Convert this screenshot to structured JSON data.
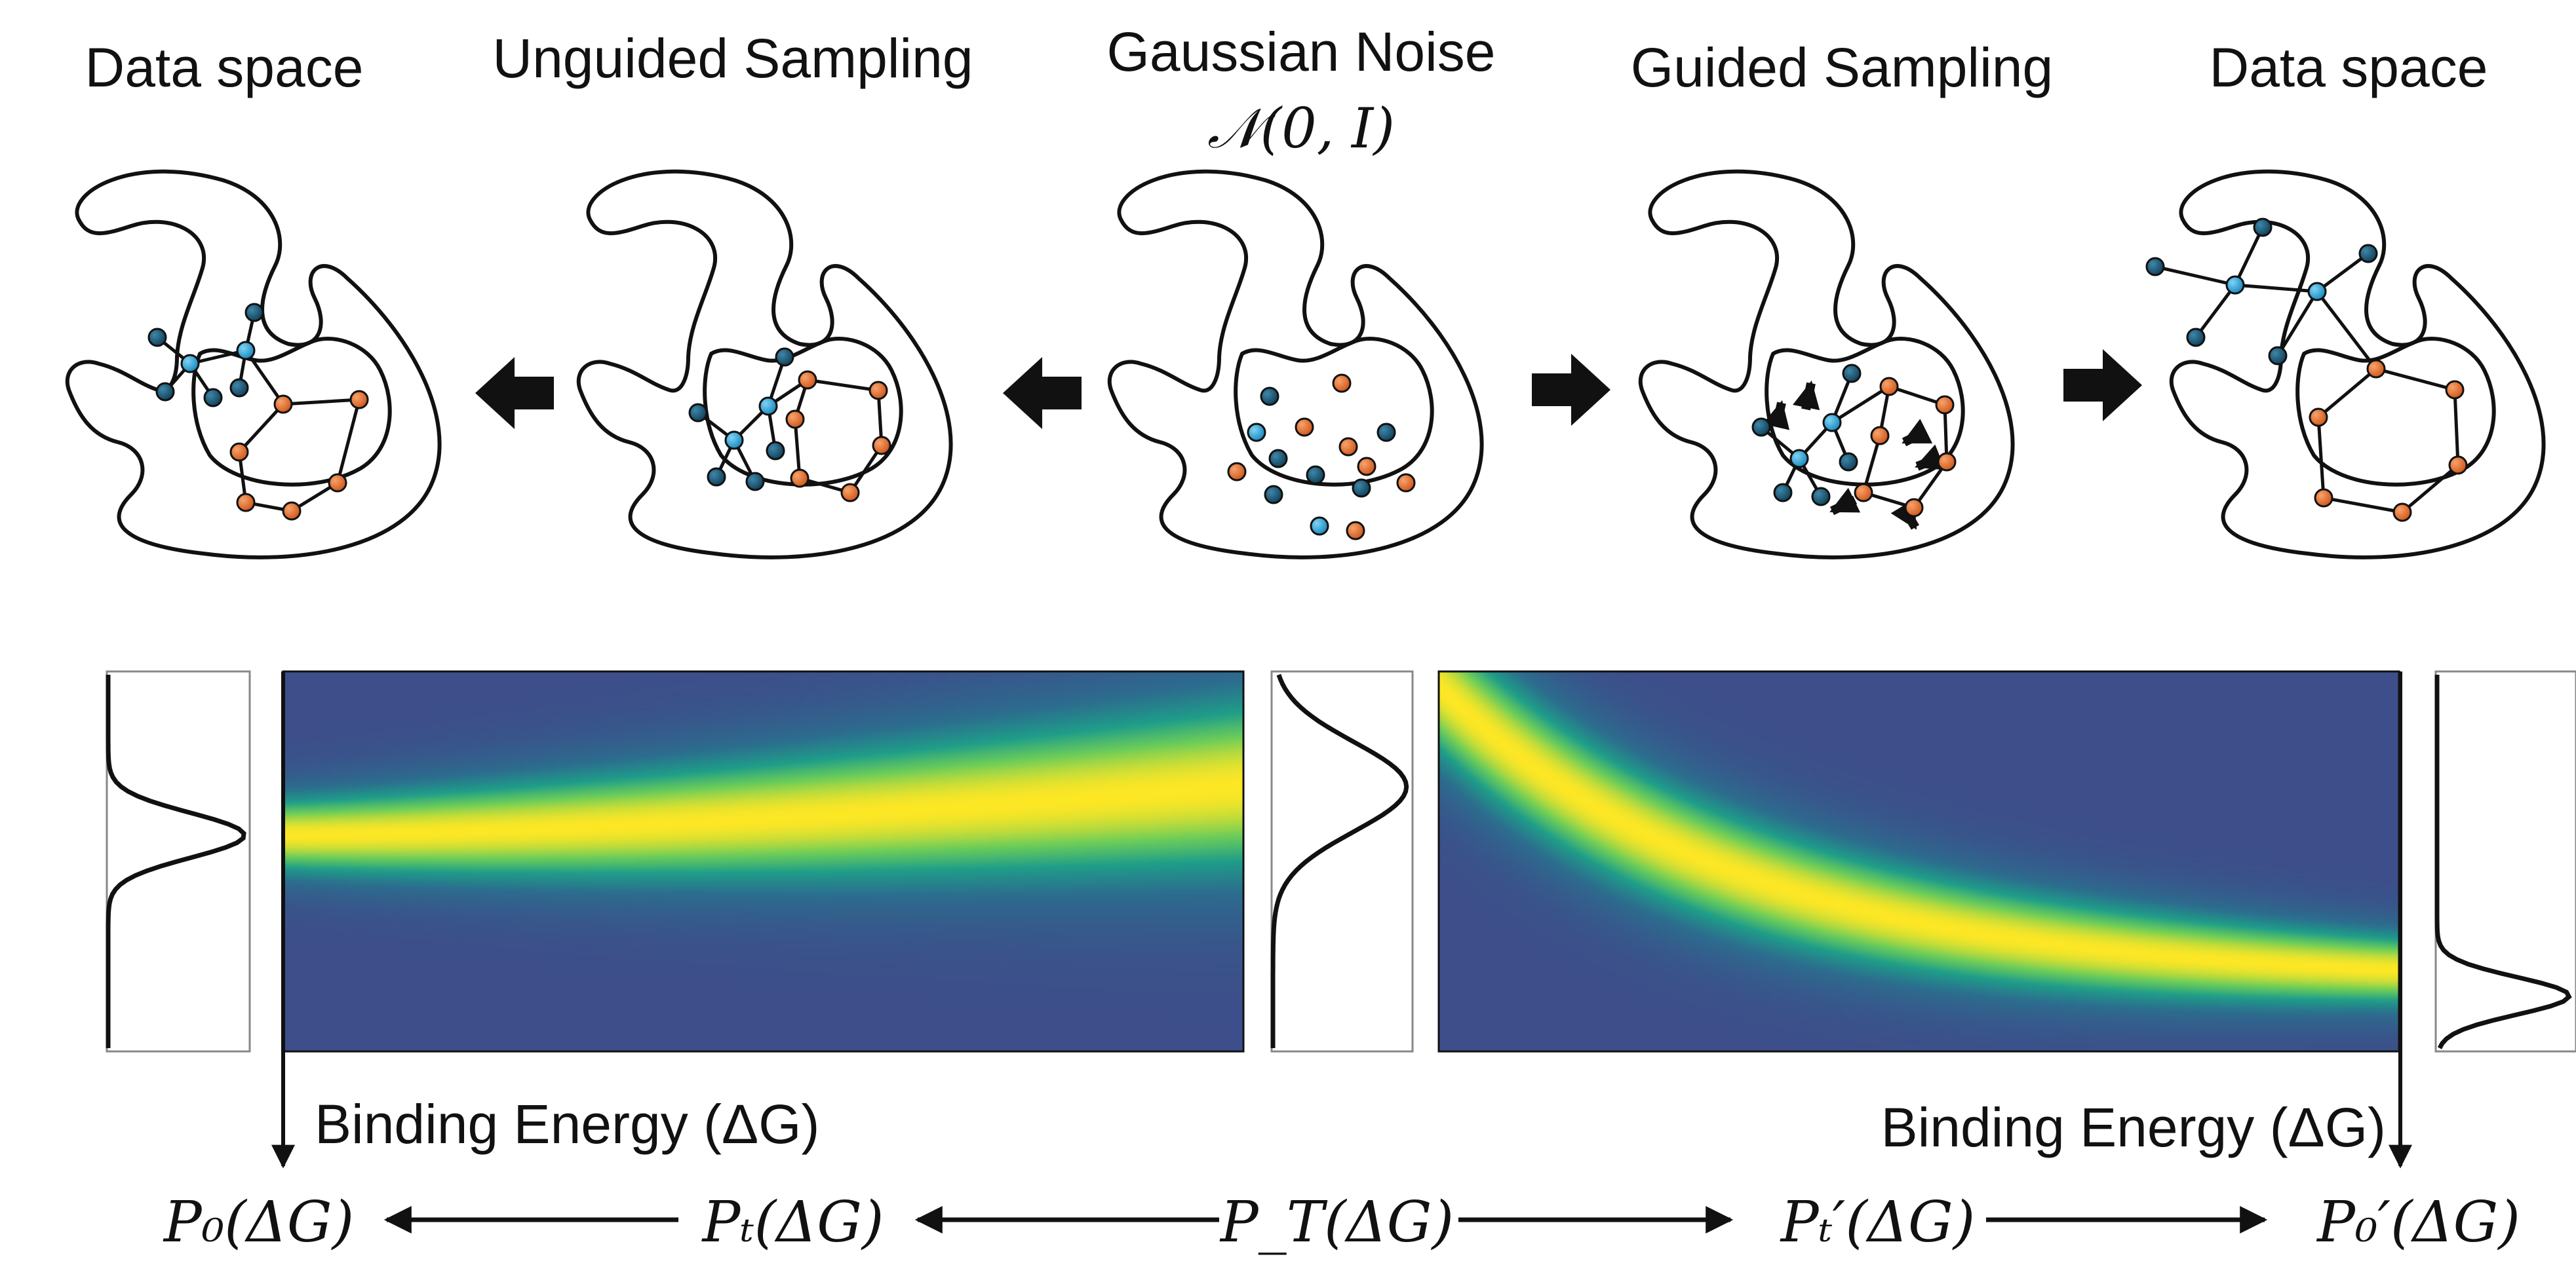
{
  "titles": {
    "data_space_left": "Data space",
    "unguided": "Unguided Sampling",
    "gaussian": "Gaussian Noise",
    "gaussian_formula": "𝒩(0, I)",
    "guided": "Guided Sampling",
    "data_space_right": "Data space"
  },
  "energy_label_left": "Binding Energy (ΔG)",
  "energy_label_right": "Binding Energy (ΔG)",
  "distributions": {
    "p0": "P₀(ΔG)",
    "pt": "Pₜ(ΔG)",
    "pT": "P_T(ΔG)",
    "pt_prime": "Pₜ′(ΔG)",
    "p0_prime": "P₀′(ΔG)"
  },
  "colors": {
    "blue_atom": "#1e9fd4",
    "dark_atom": "#16506e",
    "orange_atom": "#e06a28",
    "viridis_low": "#3d4e8a",
    "viridis_mid": "#1f9e89",
    "viridis_high": "#fde725"
  }
}
